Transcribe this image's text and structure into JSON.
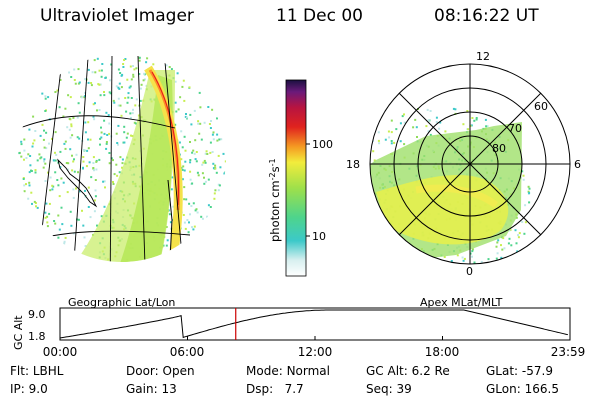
{
  "header": {
    "title": "Ultraviolet Imager",
    "date": "11 Dec 00",
    "time": "08:16:22 UT"
  },
  "geo_panel": {
    "label": "Geographic Lat/Lon"
  },
  "polar_panel": {
    "label": "Apex MLat/MLT",
    "mlt_labels": [
      "12",
      "18",
      "6",
      "0"
    ],
    "mlat_labels": [
      "60",
      "70",
      "80"
    ]
  },
  "colorbar": {
    "unit_label": "photon cm",
    "unit_exp1": "-2",
    "unit_mid": "s",
    "unit_exp2": "-1",
    "ticks": [
      "100",
      "10"
    ],
    "scale": "log"
  },
  "orbit": {
    "ylabel": "GC Alt",
    "y_ticks": [
      "9.0",
      "1.8"
    ],
    "x_ticks": [
      "00:00",
      "06:00",
      "12:00",
      "18:00",
      "23:59"
    ],
    "current_time_hours": 8.27,
    "marker_color": "#cc0000"
  },
  "info": {
    "flt_label": "Flt:",
    "flt_value": "LBHL",
    "ip_label": "IP:",
    "ip_value": "9.0",
    "door_label": "Door:",
    "door_value": "Open",
    "gain_label": "Gain:",
    "gain_value": "13",
    "mode_label": "Mode:",
    "mode_value": "Normal",
    "dsp_label": "Dsp:",
    "dsp_value": "7.7",
    "gcalt_label": "GC Alt:",
    "gcalt_value": "6.2 Re",
    "seq_label": "Seq:",
    "seq_value": "39",
    "glat_label": "GLat:",
    "glat_value": "-57.9",
    "glon_label": "GLon:",
    "glon_value": "166.5"
  }
}
